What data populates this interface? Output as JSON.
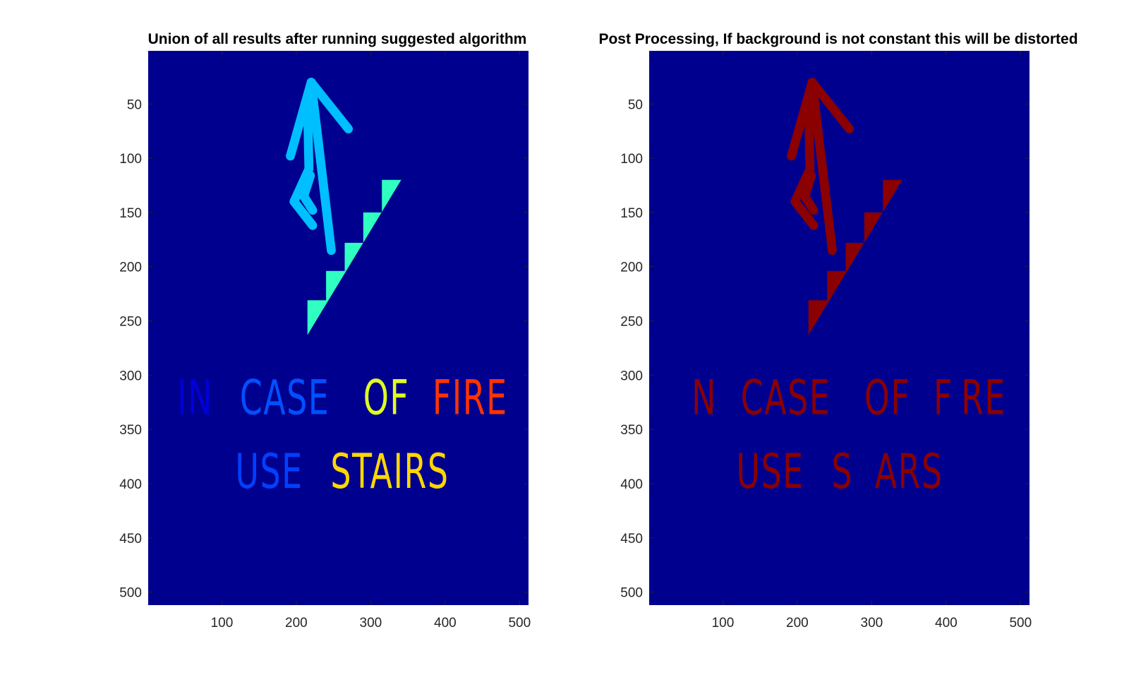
{
  "colors": {
    "background": "#00008F",
    "cyan": "#00BFFF",
    "aqua": "#2FFFC0",
    "dark_red": "#8B0000"
  },
  "chart_data": [
    {
      "type": "heatmap",
      "title": "Union of all results after running suggested algorithm",
      "xlabel": "",
      "ylabel": "",
      "xlim": [
        1,
        512
      ],
      "ylim": [
        1,
        512
      ],
      "y_reversed": true,
      "x_ticks": [
        100,
        200,
        300,
        400,
        500
      ],
      "y_ticks": [
        50,
        100,
        150,
        200,
        250,
        300,
        350,
        400,
        450,
        500
      ],
      "colormap": "jet",
      "text_lines": [
        {
          "y": 332,
          "words": [
            {
              "text": "IN",
              "x": 40,
              "color": "#0000D8"
            },
            {
              "text": "CASE",
              "x": 124,
              "color": "#0050FF"
            },
            {
              "text": "OF",
              "x": 290,
              "color": "#E0FF20"
            },
            {
              "text": "FIRE",
              "x": 383,
              "color": "#FF3300"
            }
          ]
        },
        {
          "y": 400,
          "words": [
            {
              "text": "USE",
              "x": 118,
              "color": "#0040FF"
            },
            {
              "text": "STAIRS",
              "x": 246,
              "color": "#FFD700"
            }
          ]
        }
      ]
    },
    {
      "type": "heatmap",
      "title": "Post Processing, If background is not constant this will be distorted",
      "xlabel": "",
      "ylabel": "",
      "xlim": [
        1,
        512
      ],
      "ylim": [
        1,
        512
      ],
      "y_reversed": true,
      "x_ticks": [
        100,
        200,
        300,
        400,
        500
      ],
      "y_ticks": [
        50,
        100,
        150,
        200,
        250,
        300,
        350,
        400,
        450,
        500
      ],
      "colormap": "jet",
      "text_lines": [
        {
          "y": 332,
          "words": [
            {
              "text": "N",
              "x": 58,
              "color": "#8B0000"
            },
            {
              "text": "CASE",
              "x": 124,
              "color": "#8B0000"
            },
            {
              "text": "OF",
              "x": 290,
              "color": "#8B0000"
            },
            {
              "text": "F",
              "x": 383,
              "color": "#8B0000"
            },
            {
              "text": "RE",
              "x": 420,
              "color": "#8B0000"
            }
          ]
        },
        {
          "y": 400,
          "words": [
            {
              "text": "USE",
              "x": 118,
              "color": "#8B0000"
            },
            {
              "text": "S",
              "x": 246,
              "color": "#8B0000"
            },
            {
              "text": "ARS",
              "x": 304,
              "color": "#8B0000"
            }
          ]
        }
      ]
    }
  ]
}
